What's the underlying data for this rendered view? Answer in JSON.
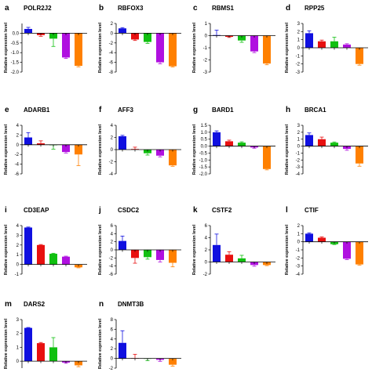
{
  "figure": {
    "ylabel": "Relative expression level",
    "bar_colors": [
      "#1010e0",
      "#e81010",
      "#10c010",
      "#b010e0",
      "#ff8000"
    ],
    "panels_layout": "4 columns x 4 rows (14 panels)"
  },
  "chart_data": [
    {
      "type": "bar",
      "letter": "a",
      "title": "POLR2J2",
      "ylabel": "Relative expression level",
      "ylim": [
        -2,
        0.5
      ],
      "yticks": [
        0,
        -0.5,
        -1,
        -1.5,
        -2
      ],
      "ytick_labels": [
        "0.0",
        "-0.5",
        "-1.0",
        "-1.5",
        "-2.0"
      ],
      "values": [
        0.22,
        -0.1,
        -0.28,
        -1.25,
        -1.68
      ],
      "errors": [
        0.08,
        0.06,
        0.4,
        0.05,
        0.05
      ]
    },
    {
      "type": "bar",
      "letter": "b",
      "title": "RBFOX3",
      "ylabel": "Relative expression level",
      "ylim": [
        -8,
        2
      ],
      "yticks": [
        2,
        0,
        -2,
        -4,
        -6,
        -8
      ],
      "ytick_labels": [
        "2",
        "0",
        "-2",
        "-4",
        "-6",
        "-8"
      ],
      "values": [
        1.0,
        -1.3,
        -1.8,
        -6.0,
        -6.8
      ],
      "errors": [
        0.15,
        0.2,
        0.3,
        0.3,
        0.15
      ]
    },
    {
      "type": "bar",
      "letter": "c",
      "title": "RBMS1",
      "ylabel": "Relative expression level",
      "ylim": [
        -3,
        1
      ],
      "yticks": [
        1,
        0,
        -1,
        -2,
        -3
      ],
      "ytick_labels": [
        "1",
        "0",
        "-1",
        "-2",
        "-3"
      ],
      "values": [
        0.05,
        -0.1,
        -0.4,
        -1.3,
        -2.3
      ],
      "errors": [
        0.4,
        0.05,
        0.15,
        0.1,
        0.1
      ]
    },
    {
      "type": "bar",
      "letter": "d",
      "title": "RPP25",
      "ylabel": "Relative expression level",
      "ylim": [
        -3,
        3
      ],
      "yticks": [
        3,
        2,
        1,
        0,
        -1,
        -2,
        -3
      ],
      "ytick_labels": [
        "3",
        "2",
        "1",
        "0",
        "-1",
        "-2",
        "-3"
      ],
      "values": [
        1.8,
        0.8,
        0.8,
        0.4,
        -2.0
      ],
      "errors": [
        0.3,
        0.15,
        0.5,
        0.1,
        0.15
      ]
    },
    {
      "type": "bar",
      "letter": "e",
      "title": "ADARB1",
      "ylabel": "Relative expression level",
      "ylim": [
        -6,
        4
      ],
      "yticks": [
        4,
        2,
        0,
        -2,
        -4,
        -6
      ],
      "ytick_labels": [
        "4",
        "2",
        "0",
        "-2",
        "-4",
        "-6"
      ],
      "values": [
        1.5,
        0.3,
        -0.1,
        -1.5,
        -2.0
      ],
      "errors": [
        1.0,
        0.5,
        0.8,
        0.2,
        2.3
      ]
    },
    {
      "type": "bar",
      "letter": "f",
      "title": "AFF3",
      "ylabel": "Relative expression level",
      "ylim": [
        -4,
        4
      ],
      "yticks": [
        4,
        2,
        0,
        -2,
        -4
      ],
      "ytick_labels": [
        "4",
        "2",
        "0",
        "-2",
        "-4"
      ],
      "values": [
        2.2,
        0.1,
        -0.6,
        -1.0,
        -2.6
      ],
      "errors": [
        0.15,
        0.3,
        0.3,
        0.2,
        0.15
      ]
    },
    {
      "type": "bar",
      "letter": "g",
      "title": "BARD1",
      "ylabel": "Relative expression level",
      "ylim": [
        -2,
        1.5
      ],
      "yticks": [
        1.5,
        1,
        0.5,
        0,
        -0.5,
        -1,
        -1.5,
        -2
      ],
      "ytick_labels": [
        "1.5",
        "1.0",
        "0.5",
        "0.0",
        "-0.5",
        "-1.0",
        "-1.5",
        "-2.0"
      ],
      "values": [
        1.0,
        0.35,
        0.25,
        -0.1,
        -1.65
      ],
      "errors": [
        0.1,
        0.08,
        0.06,
        0.05,
        0.06
      ]
    },
    {
      "type": "bar",
      "letter": "h",
      "title": "BRCA1",
      "ylabel": "Relative expression level",
      "ylim": [
        -4,
        3
      ],
      "yticks": [
        3,
        2,
        1,
        0,
        -1,
        -2,
        -3,
        -4
      ],
      "ytick_labels": [
        "3",
        "2",
        "1",
        "0",
        "-1",
        "-2",
        "-3",
        "-4"
      ],
      "values": [
        1.6,
        1.0,
        0.5,
        -0.4,
        -2.5
      ],
      "errors": [
        0.3,
        0.3,
        0.1,
        0.2,
        0.4
      ]
    },
    {
      "type": "bar",
      "letter": "i",
      "title": "CD3EAP",
      "ylabel": "Relative expression level",
      "ylim": [
        -1,
        4
      ],
      "yticks": [
        4,
        3,
        2,
        1,
        0,
        -1
      ],
      "ytick_labels": [
        "4",
        "3",
        "2",
        "1",
        "0",
        "-1"
      ],
      "values": [
        3.8,
        2.0,
        1.1,
        0.8,
        -0.3
      ],
      "errors": [
        0.05,
        0.05,
        0.05,
        0.05,
        0.05
      ]
    },
    {
      "type": "bar",
      "letter": "j",
      "title": "CSDC2",
      "ylabel": "Relative expression level",
      "ylim": [
        -6,
        6
      ],
      "yticks": [
        6,
        4,
        2,
        0,
        -2,
        -4,
        -6
      ],
      "ytick_labels": [
        "6",
        "4",
        "2",
        "0",
        "-2",
        "-4",
        "-6"
      ],
      "values": [
        2.2,
        -2.0,
        -1.8,
        -2.5,
        -3.2
      ],
      "errors": [
        1.2,
        1.3,
        0.5,
        0.5,
        1.0
      ]
    },
    {
      "type": "bar",
      "letter": "k",
      "title": "CSTF2",
      "ylabel": "Relative expression level",
      "ylim": [
        -2,
        6
      ],
      "yticks": [
        6,
        4,
        2,
        0,
        -2
      ],
      "ytick_labels": [
        "6",
        "4",
        "2",
        "0",
        "-2"
      ],
      "values": [
        2.8,
        1.2,
        0.6,
        -0.5,
        -0.5
      ],
      "errors": [
        1.8,
        0.5,
        0.5,
        0.2,
        0.1
      ]
    },
    {
      "type": "bar",
      "letter": "l",
      "title": "CTIF",
      "ylabel": "Relative expression level",
      "ylim": [
        -4,
        2
      ],
      "yticks": [
        2,
        1,
        0,
        -1,
        -2,
        -3,
        -4
      ],
      "ytick_labels": [
        "2",
        "1",
        "0",
        "-1",
        "-2",
        "-3",
        "-4"
      ],
      "values": [
        1.0,
        0.5,
        -0.3,
        -2.1,
        -2.8
      ],
      "errors": [
        0.1,
        0.1,
        0.05,
        0.1,
        0.1
      ]
    },
    {
      "type": "bar",
      "letter": "m",
      "title": "DARS2",
      "ylabel": "Relative expression level",
      "ylim": [
        -0.5,
        3
      ],
      "yticks": [
        3,
        2,
        1,
        0
      ],
      "ytick_labels": [
        "3",
        "2",
        "1",
        "0"
      ],
      "values": [
        2.4,
        1.3,
        1.0,
        -0.1,
        -0.3
      ],
      "errors": [
        0.03,
        0.05,
        0.7,
        0.05,
        0.1
      ]
    },
    {
      "type": "bar",
      "letter": "n",
      "title": "DNMT3B",
      "ylabel": "Relative expression level",
      "ylim": [
        -2,
        8
      ],
      "yticks": [
        8,
        6,
        4,
        2,
        0,
        -2
      ],
      "ytick_labels": [
        "8",
        "6",
        "4",
        "2",
        "0",
        "-2"
      ],
      "values": [
        3.2,
        0.05,
        -0.05,
        -0.3,
        -1.3
      ],
      "errors": [
        2.5,
        0.8,
        0.4,
        0.3,
        0.3
      ]
    }
  ]
}
